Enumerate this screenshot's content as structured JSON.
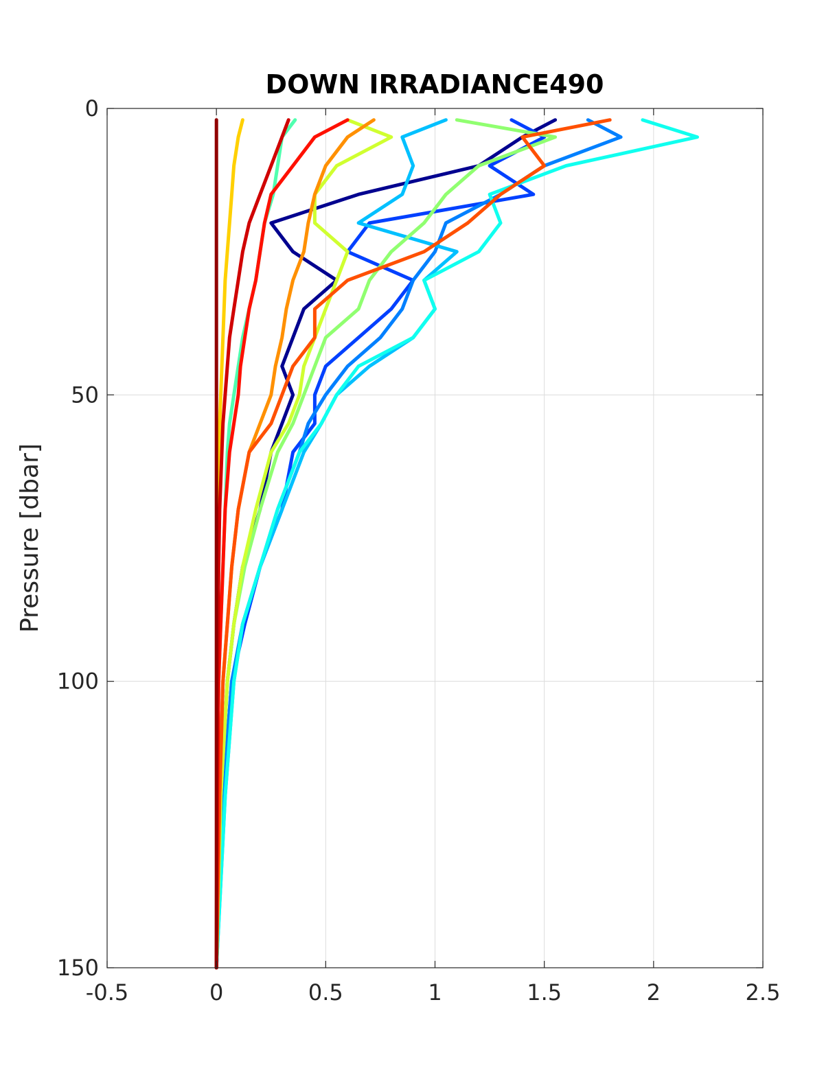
{
  "chart_data": {
    "type": "line",
    "title": "DOWN IRRADIANCE490",
    "xlabel": "",
    "ylabel": "Pressure [dbar]",
    "xlim": [
      -0.5,
      2.5
    ],
    "ylim": [
      0,
      150
    ],
    "y_reversed": true,
    "grid": true,
    "x_ticks": [
      "-0.5",
      "0",
      "0.5",
      "1",
      "1.5",
      "2",
      "2.5"
    ],
    "y_ticks": [
      "0",
      "50",
      "100",
      "150"
    ],
    "series": [
      {
        "color": "#00008f",
        "pressure": [
          2,
          5,
          10,
          15,
          20,
          25,
          30,
          35,
          40,
          45,
          50,
          55,
          60,
          70,
          80,
          90,
          100,
          120,
          150
        ],
        "values": [
          1.55,
          1.4,
          1.2,
          0.65,
          0.25,
          0.35,
          0.55,
          0.4,
          0.35,
          0.3,
          0.35,
          0.3,
          0.25,
          0.2,
          0.12,
          0.08,
          0.05,
          0.02,
          0.0
        ]
      },
      {
        "color": "#0040ff",
        "pressure": [
          2,
          5,
          10,
          15,
          20,
          25,
          30,
          35,
          40,
          45,
          50,
          55,
          60,
          70,
          80,
          90,
          100,
          120,
          150
        ],
        "values": [
          1.35,
          1.5,
          1.25,
          1.45,
          0.7,
          0.6,
          0.9,
          0.8,
          0.65,
          0.5,
          0.45,
          0.45,
          0.35,
          0.3,
          0.2,
          0.13,
          0.07,
          0.03,
          0.0
        ]
      },
      {
        "color": "#0080ff",
        "pressure": [
          2,
          5,
          10,
          15,
          20,
          25,
          30,
          35,
          40,
          45,
          50,
          55,
          60,
          70,
          80,
          90,
          100,
          120,
          150
        ],
        "values": [
          1.7,
          1.85,
          1.5,
          1.3,
          1.05,
          1.0,
          0.9,
          0.85,
          0.75,
          0.6,
          0.5,
          0.42,
          0.38,
          0.28,
          0.2,
          0.12,
          0.07,
          0.03,
          0.0
        ]
      },
      {
        "color": "#00c0ff",
        "pressure": [
          2,
          5,
          10,
          15,
          20,
          25,
          30,
          35,
          40,
          45,
          50,
          55,
          60,
          70,
          80,
          90,
          100,
          120,
          150
        ],
        "values": [
          1.05,
          0.85,
          0.9,
          0.85,
          0.65,
          1.1,
          0.95,
          1.0,
          0.9,
          0.7,
          0.55,
          0.48,
          0.4,
          0.3,
          0.2,
          0.12,
          0.08,
          0.04,
          0.0
        ]
      },
      {
        "color": "#10ffef",
        "pressure": [
          2,
          5,
          10,
          15,
          20,
          25,
          30,
          35,
          40,
          45,
          50,
          55,
          60,
          70,
          80,
          90,
          100,
          120,
          150
        ],
        "values": [
          1.95,
          2.2,
          1.6,
          1.25,
          1.3,
          1.2,
          0.95,
          1.0,
          0.9,
          0.65,
          0.55,
          0.48,
          0.38,
          0.28,
          0.2,
          0.12,
          0.08,
          0.04,
          0.0
        ]
      },
      {
        "color": "#50ffaf",
        "pressure": [
          2,
          5,
          10,
          15,
          20,
          25,
          30,
          35,
          40,
          45,
          50,
          55,
          60,
          70,
          80,
          90,
          100,
          120,
          150
        ],
        "values": [
          0.36,
          0.3,
          0.28,
          0.26,
          0.22,
          0.2,
          0.18,
          0.15,
          0.12,
          0.1,
          0.08,
          0.06,
          0.05,
          0.04,
          0.03,
          0.02,
          0.01,
          0.005,
          0.0
        ]
      },
      {
        "color": "#90ff70",
        "pressure": [
          2,
          5,
          10,
          15,
          20,
          25,
          30,
          35,
          40,
          45,
          50,
          55,
          60,
          70,
          80,
          90,
          100,
          120,
          150
        ],
        "values": [
          1.1,
          1.55,
          1.2,
          1.05,
          0.95,
          0.8,
          0.7,
          0.65,
          0.5,
          0.45,
          0.4,
          0.35,
          0.28,
          0.2,
          0.13,
          0.08,
          0.05,
          0.02,
          0.0
        ]
      },
      {
        "color": "#d0ff30",
        "pressure": [
          2,
          5,
          10,
          15,
          20,
          25,
          30,
          35,
          40,
          45,
          50,
          55,
          60,
          70,
          80,
          90,
          100,
          120,
          150
        ],
        "values": [
          0.6,
          0.8,
          0.55,
          0.45,
          0.45,
          0.6,
          0.55,
          0.5,
          0.45,
          0.4,
          0.38,
          0.33,
          0.25,
          0.18,
          0.12,
          0.08,
          0.05,
          0.02,
          0.0
        ]
      },
      {
        "color": "#ffd000",
        "pressure": [
          2,
          5,
          10,
          15,
          20,
          25,
          30,
          35,
          40,
          45,
          50,
          55,
          60,
          70,
          80,
          90,
          100,
          120,
          150
        ],
        "values": [
          0.12,
          0.1,
          0.08,
          0.07,
          0.06,
          0.05,
          0.04,
          0.035,
          0.03,
          0.025,
          0.02,
          0.015,
          0.012,
          0.01,
          0.008,
          0.005,
          0.004,
          0.002,
          0.0
        ]
      },
      {
        "color": "#ff9000",
        "pressure": [
          2,
          5,
          10,
          15,
          20,
          25,
          30,
          35,
          40,
          45,
          50,
          55,
          60,
          70,
          80,
          90,
          100,
          120,
          150
        ],
        "values": [
          0.72,
          0.6,
          0.5,
          0.45,
          0.42,
          0.4,
          0.35,
          0.32,
          0.3,
          0.27,
          0.25,
          0.2,
          0.15,
          0.1,
          0.07,
          0.05,
          0.03,
          0.015,
          0.0
        ]
      },
      {
        "color": "#ff5000",
        "pressure": [
          2,
          5,
          10,
          15,
          20,
          25,
          30,
          35,
          40,
          45,
          50,
          55,
          60,
          70,
          80,
          90,
          100,
          120,
          150
        ],
        "values": [
          1.8,
          1.4,
          1.5,
          1.3,
          1.15,
          0.95,
          0.6,
          0.45,
          0.45,
          0.35,
          0.3,
          0.25,
          0.15,
          0.1,
          0.07,
          0.05,
          0.03,
          0.015,
          0.0
        ]
      },
      {
        "color": "#ff1000",
        "pressure": [
          2,
          5,
          10,
          15,
          20,
          25,
          30,
          35,
          40,
          45,
          50,
          55,
          60,
          70,
          80,
          90,
          100,
          120,
          150
        ],
        "values": [
          0.6,
          0.45,
          0.35,
          0.25,
          0.22,
          0.2,
          0.18,
          0.15,
          0.13,
          0.11,
          0.1,
          0.08,
          0.06,
          0.04,
          0.03,
          0.02,
          0.01,
          0.005,
          0.0
        ]
      },
      {
        "color": "#d00000",
        "pressure": [
          2,
          5,
          10,
          15,
          20,
          25,
          30,
          35,
          40,
          45,
          50,
          55,
          60,
          70,
          80,
          90,
          100,
          120,
          150
        ],
        "values": [
          0.33,
          0.3,
          0.25,
          0.2,
          0.15,
          0.12,
          0.1,
          0.08,
          0.06,
          0.05,
          0.04,
          0.03,
          0.025,
          0.015,
          0.01,
          0.008,
          0.005,
          0.002,
          0.0
        ]
      },
      {
        "color": "#900000",
        "pressure": [
          2,
          5,
          10,
          15,
          20,
          25,
          30,
          35,
          40,
          45,
          50,
          55,
          60,
          70,
          80,
          90,
          100,
          120,
          150
        ],
        "values": [
          0.0,
          0.0,
          0.0,
          0.0,
          0.0,
          0.0,
          0.0,
          0.0,
          0.0,
          0.0,
          0.0,
          0.0,
          0.0,
          0.0,
          0.0,
          0.0,
          0.0,
          0.0,
          0.0
        ]
      }
    ]
  }
}
